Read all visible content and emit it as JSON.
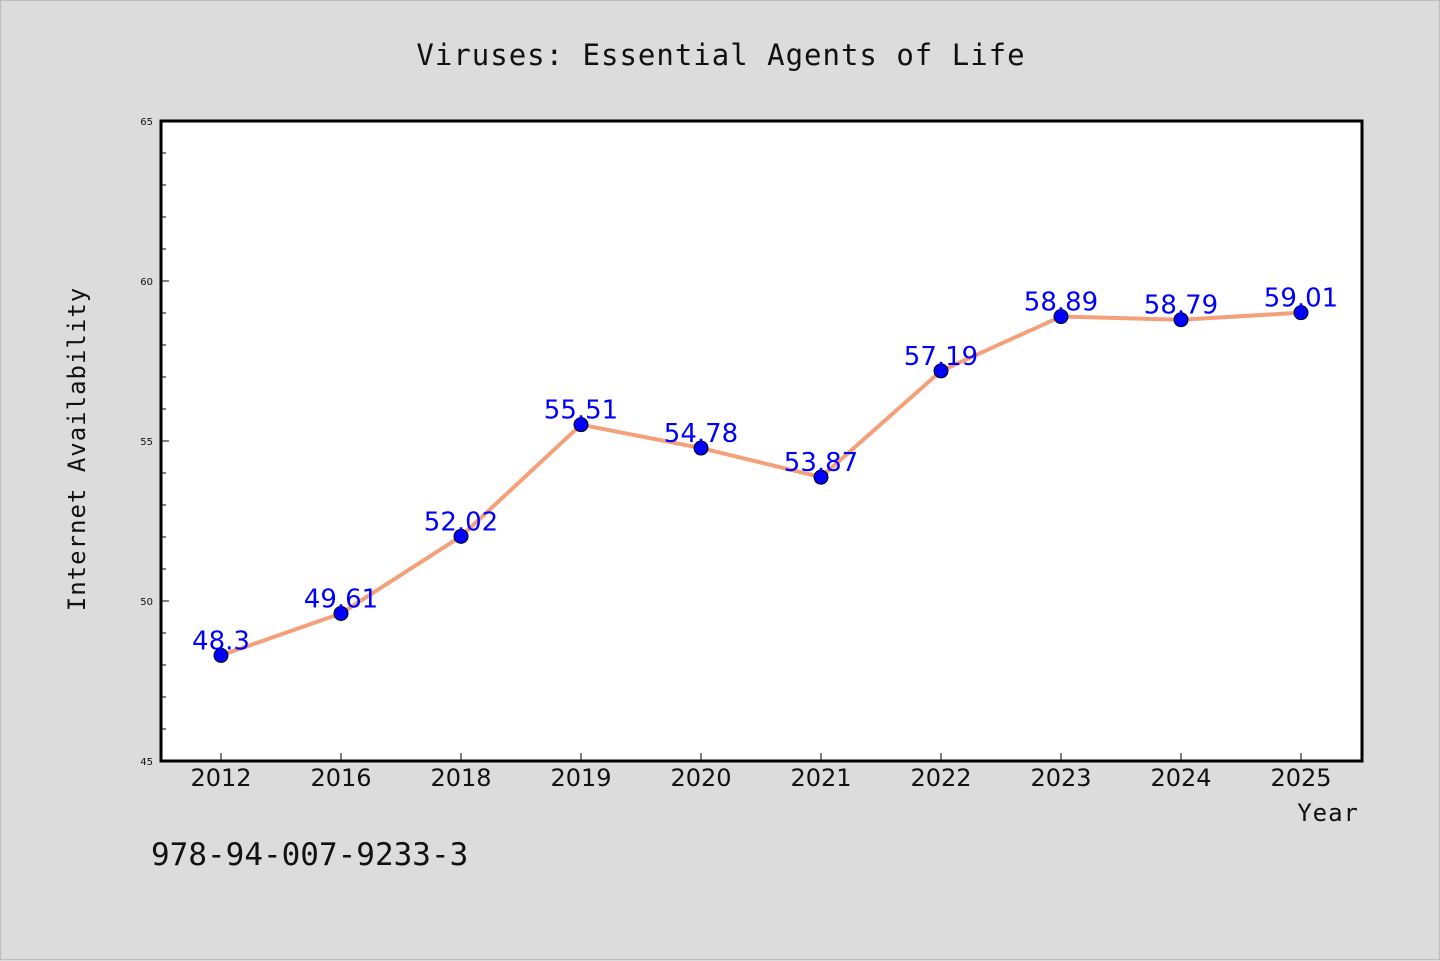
{
  "isbn_text": "978-94-007-9233-3",
  "colors": {
    "background": "#dcdcdc",
    "plot_background": "#ffffff",
    "line": "#f4a07a",
    "marker": "#0000ff",
    "data_label": "#0000ff"
  },
  "chart_data": {
    "type": "line",
    "title": "Viruses: Essential Agents of Life",
    "xlabel": "Year",
    "ylabel": "Internet Availability",
    "categories": [
      "2012",
      "2016",
      "2018",
      "2019",
      "2020",
      "2021",
      "2022",
      "2023",
      "2024",
      "2025"
    ],
    "series": [
      {
        "values": [
          48.3,
          49.61,
          52.02,
          55.51,
          54.78,
          53.87,
          57.19,
          58.89,
          58.79,
          59.01
        ],
        "data_labels": [
          "48.3",
          "49.61",
          "52.02",
          "55.51",
          "54.78",
          "53.87",
          "57.19",
          "58.89",
          "58.79",
          "59.01"
        ]
      }
    ],
    "ylim": [
      45,
      65
    ],
    "yticks": [
      "45",
      "50",
      "55",
      "60",
      "65"
    ],
    "ytick_values": [
      45,
      50,
      55,
      60,
      65
    ],
    "minor_tick_step": 1,
    "grid": false,
    "legend": "none"
  }
}
